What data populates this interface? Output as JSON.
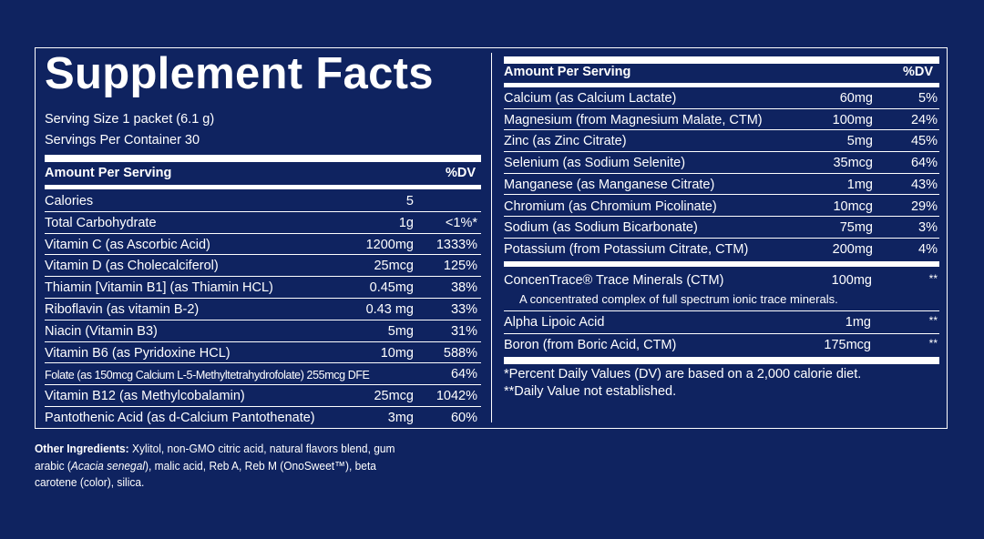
{
  "title": "Supplement Facts",
  "serving_size": "Serving Size 1 packet (6.1 g)",
  "servings_per_container": "Servings Per Container 30",
  "left_header": {
    "amount": "Amount Per Serving",
    "dv": "%DV"
  },
  "left_rows": [
    {
      "name": "Calories",
      "amount": "5",
      "dv": ""
    },
    {
      "name": "Total Carbohydrate",
      "amount": "1g",
      "dv": "<1%*"
    },
    {
      "name": "Vitamin C (as Ascorbic Acid)",
      "amount": "1200mg",
      "dv": "1333%"
    },
    {
      "name": "Vitamin D (as Cholecalciferol)",
      "amount": "25mcg",
      "dv": "125%"
    },
    {
      "name": "Thiamin [Vitamin B1] (as Thiamin HCL)",
      "amount": "0.45mg",
      "dv": "38%"
    },
    {
      "name": "Riboflavin (as vitamin B-2)",
      "amount": "0.43 mg",
      "dv": "33%"
    },
    {
      "name": "Niacin (Vitamin B3)",
      "amount": "5mg",
      "dv": "31%"
    },
    {
      "name": "Vitamin B6 (as Pyridoxine HCL)",
      "amount": "10mg",
      "dv": "588%"
    },
    {
      "name": "Folate (as 150mcg Calcium L-5-Methyltetrahydrofolate) 255mcg DFE",
      "amount": "",
      "dv": "64%"
    },
    {
      "name": "Vitamin B12 (as Methylcobalamin)",
      "amount": "25mcg",
      "dv": "1042%"
    },
    {
      "name": "Pantothenic Acid (as d-Calcium Pantothenate)",
      "amount": "3mg",
      "dv": "60%"
    }
  ],
  "right_header": {
    "amount": "Amount Per Serving",
    "dv": "%DV"
  },
  "right_rows": [
    {
      "name": "Calcium (as Calcium Lactate)",
      "amount": "60mg",
      "dv": "5%"
    },
    {
      "name": "Magnesium (from Magnesium Malate, CTM)",
      "amount": "100mg",
      "dv": "24%"
    },
    {
      "name": "Zinc (as Zinc Citrate)",
      "amount": "5mg",
      "dv": "45%"
    },
    {
      "name": "Selenium (as Sodium Selenite)",
      "amount": "35mcg",
      "dv": "64%"
    },
    {
      "name": "Manganese (as Manganese Citrate)",
      "amount": "1mg",
      "dv": "43%"
    },
    {
      "name": "Chromium (as Chromium Picolinate)",
      "amount": "10mcg",
      "dv": "29%"
    },
    {
      "name": "Sodium (as Sodium Bicarbonate)",
      "amount": "75mg",
      "dv": "3%"
    },
    {
      "name": "Potassium (from Potassium Citrate, CTM)",
      "amount": "200mg",
      "dv": "4%"
    }
  ],
  "concentrace": {
    "name": "ConcenTrace® Trace Minerals (CTM)",
    "amount": "100mg",
    "dv": "**",
    "description": "A concentrated complex of full spectrum ionic trace minerals."
  },
  "extra_rows": [
    {
      "name": "Alpha Lipoic Acid",
      "amount": "1mg",
      "dv": "**"
    },
    {
      "name": "Boron (from Boric Acid, CTM)",
      "amount": "175mcg",
      "dv": "**"
    }
  ],
  "footnote_1": "*Percent Daily Values (DV) are based on a 2,000 calorie diet.",
  "footnote_2": "**Daily Value not established.",
  "other_ingredients": {
    "label": "Other Ingredients:",
    "text_1": " Xylitol, non-GMO citric acid, natural flavors blend, gum arabic (",
    "italic": "Acacia senegal",
    "text_2": "), malic acid, Reb A, Reb M (OnoSweet™), beta carotene (color), silica."
  }
}
